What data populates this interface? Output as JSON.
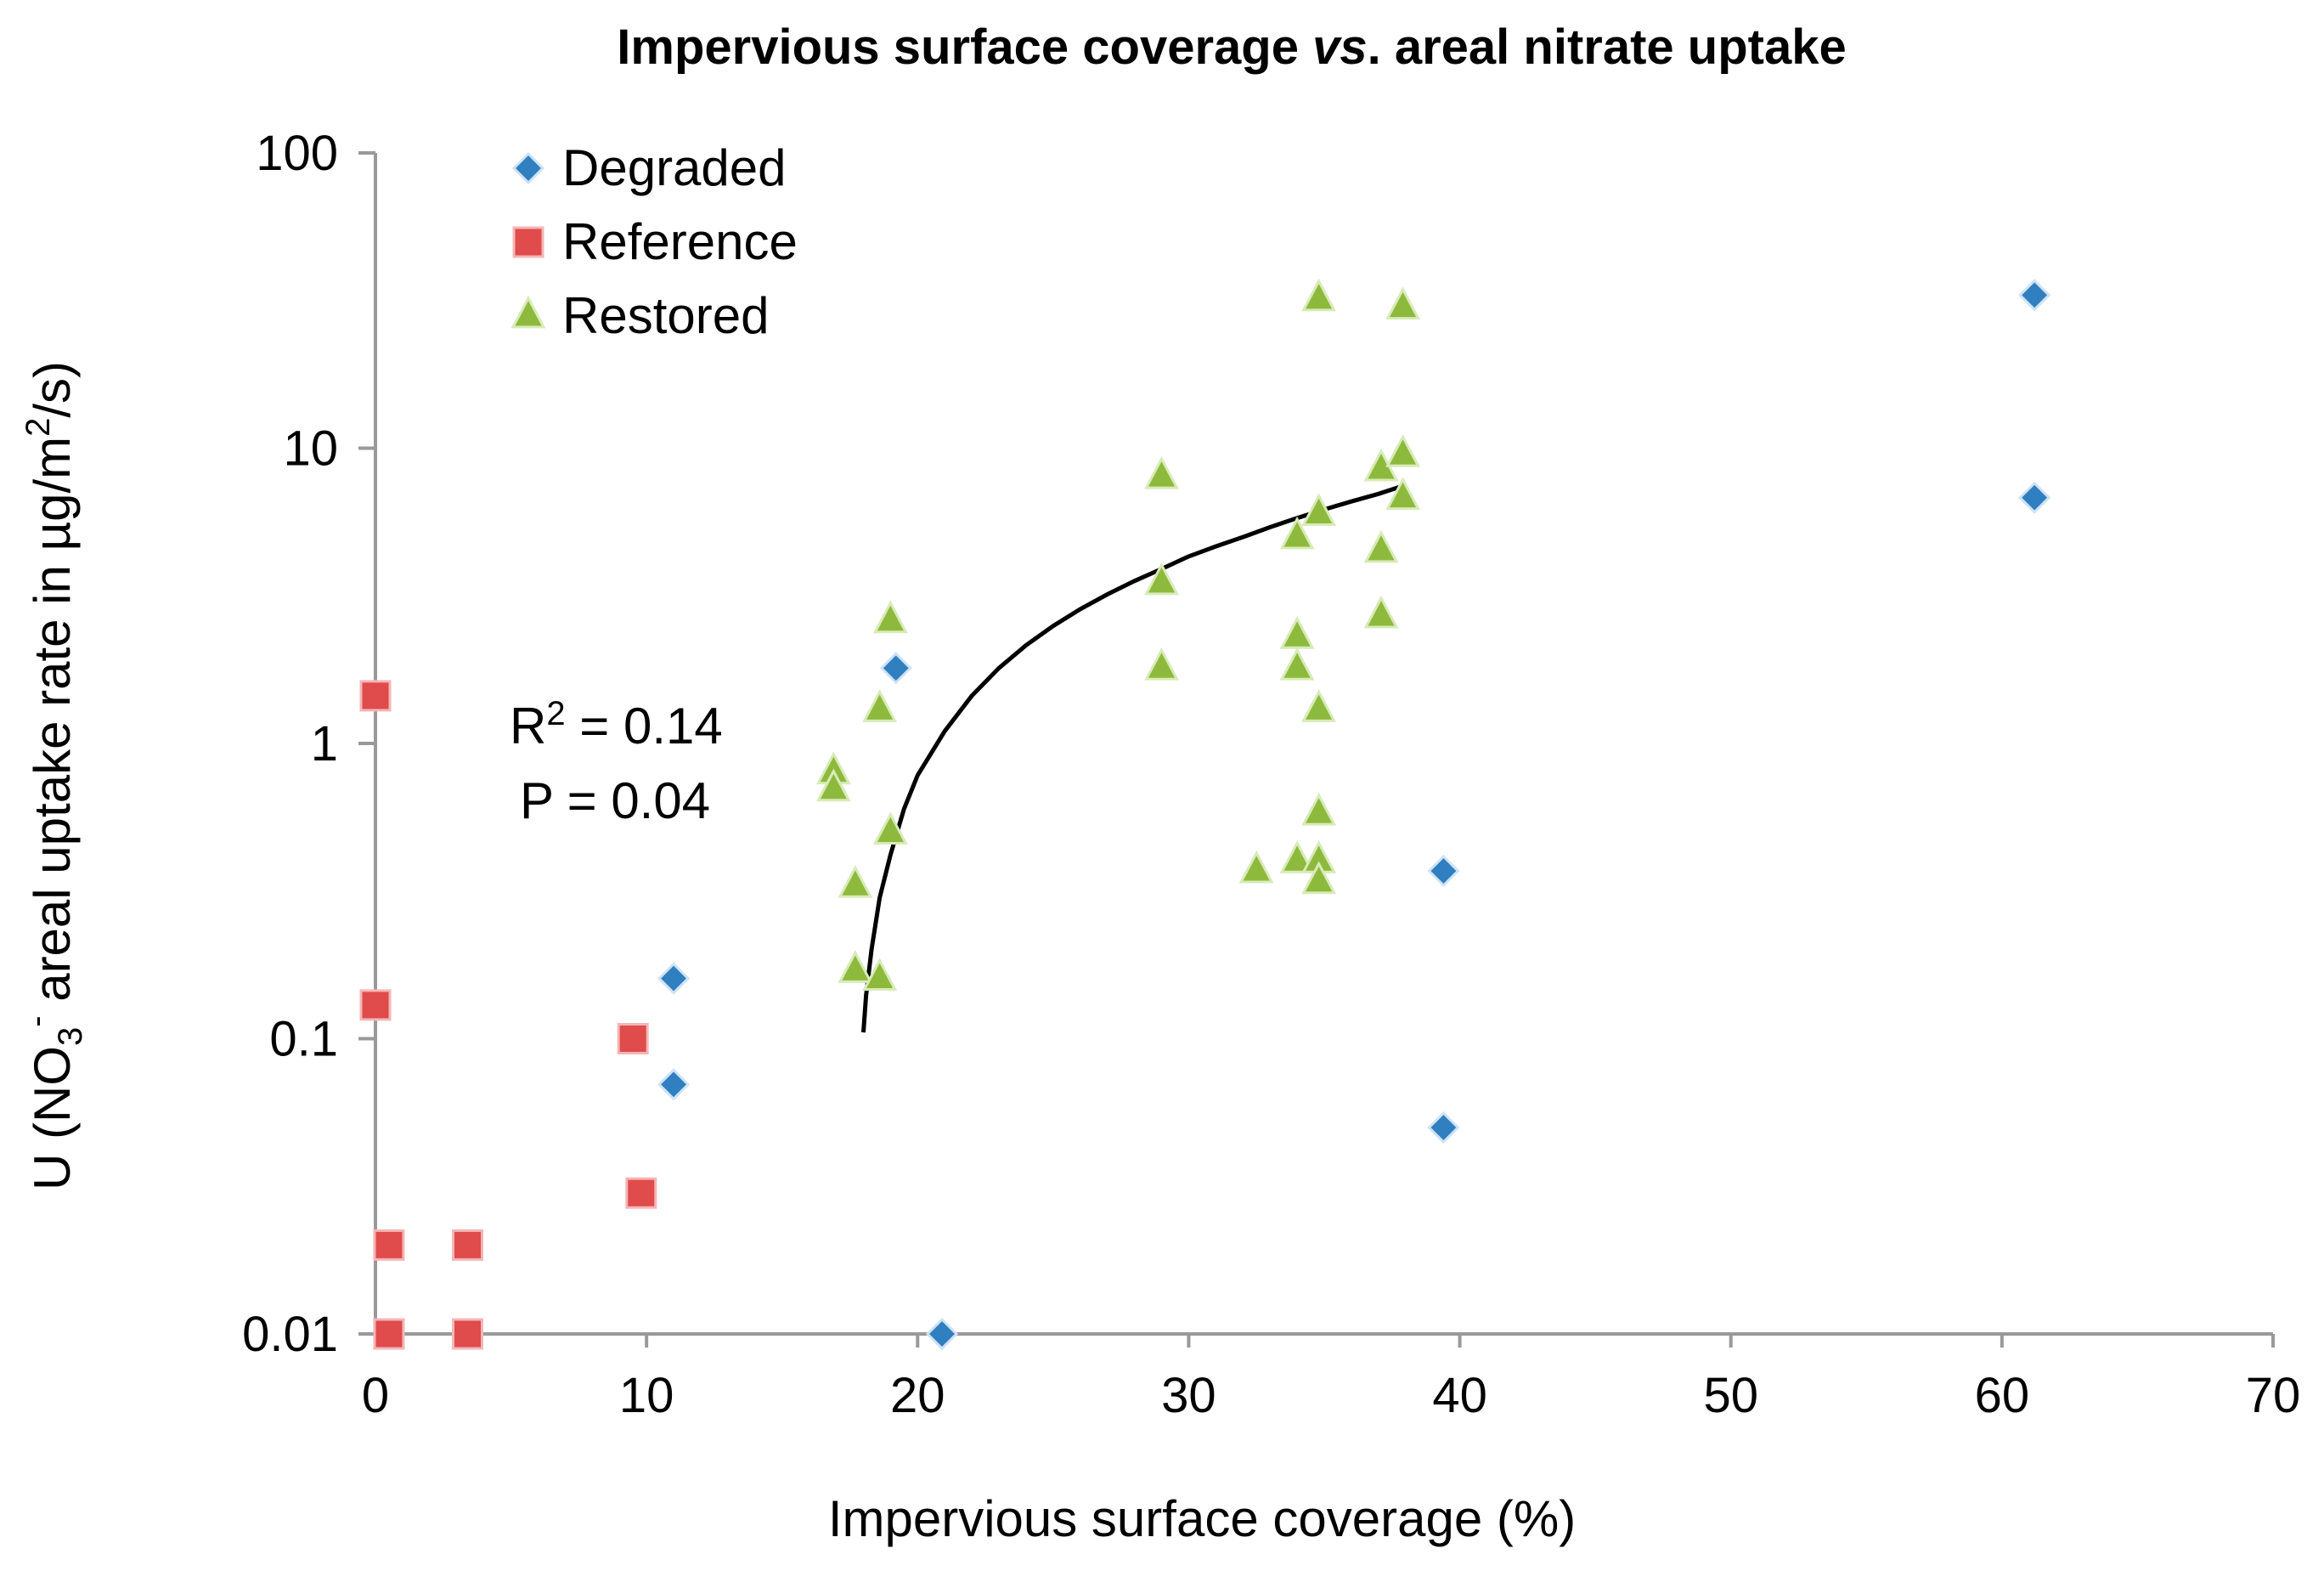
{
  "chart_data": {
    "type": "scatter",
    "title_parts": {
      "a": "Impervious surface coverage ",
      "b": "vs",
      "c": ". areal nitrate uptake"
    },
    "xlabel": "Impervious surface coverage (%)",
    "ylabel_parts": {
      "a": "U (NO",
      "sub": "3",
      "sup": "-",
      "b": " areal uptake rate in µg/m",
      "sup2": "2",
      "c": "/s)"
    },
    "x_ticks": [
      "0",
      "10",
      "20",
      "30",
      "40",
      "50",
      "60",
      "70"
    ],
    "y_ticks": [
      "0.01",
      "0.1",
      "1",
      "10",
      "100"
    ],
    "xlim": [
      0,
      70
    ],
    "ylim": [
      0.01,
      100
    ],
    "y_scale": "log",
    "grid": false,
    "legend_position": "top-left",
    "annotation": {
      "r2_prefix": "R",
      "r2_sup": "2",
      "r2_rest": " = 0.14",
      "p_text": "P = 0.04"
    },
    "series": [
      {
        "name": "Degraded",
        "marker": "diamond",
        "color": "#2F7FC1",
        "points": [
          [
            11,
            0.16
          ],
          [
            11,
            0.07
          ],
          [
            19.2,
            1.8
          ],
          [
            20.9,
            0.01
          ],
          [
            39.4,
            0.37
          ],
          [
            39.4,
            0.05
          ],
          [
            61.2,
            33
          ],
          [
            61.2,
            6.8
          ]
        ]
      },
      {
        "name": "Reference",
        "marker": "square",
        "color": "#E04B4B",
        "points": [
          [
            0,
            1.45
          ],
          [
            0,
            0.13
          ],
          [
            0.5,
            0.02
          ],
          [
            0.5,
            0.01
          ],
          [
            3.4,
            0.02
          ],
          [
            3.4,
            0.01
          ],
          [
            9.5,
            0.1
          ],
          [
            9.8,
            0.03
          ]
        ]
      },
      {
        "name": "Restored",
        "marker": "triangle",
        "color": "#8DBA3C",
        "points": [
          [
            16.9,
            0.8
          ],
          [
            16.9,
            0.7
          ],
          [
            17.7,
            0.33
          ],
          [
            17.7,
            0.17
          ],
          [
            18.6,
            0.16
          ],
          [
            18.6,
            1.3
          ],
          [
            19.0,
            2.6
          ],
          [
            19.0,
            0.5
          ],
          [
            29,
            8
          ],
          [
            29,
            3.5
          ],
          [
            29,
            1.8
          ],
          [
            32.5,
            0.37
          ],
          [
            34,
            5
          ],
          [
            34,
            2.3
          ],
          [
            34,
            1.8
          ],
          [
            34,
            0.4
          ],
          [
            34.8,
            32
          ],
          [
            34.8,
            6
          ],
          [
            34.8,
            1.3
          ],
          [
            34.8,
            0.58
          ],
          [
            34.8,
            0.4
          ],
          [
            34.8,
            0.34
          ],
          [
            37.1,
            8.5
          ],
          [
            37.1,
            4.5
          ],
          [
            37.1,
            2.7
          ],
          [
            37.9,
            30
          ],
          [
            37.9,
            9.5
          ],
          [
            37.9,
            6.8
          ]
        ]
      }
    ],
    "trendline": {
      "type": "log-fit",
      "color": "#000000",
      "points": [
        [
          18.0,
          0.105
        ],
        [
          18.1,
          0.14
        ],
        [
          18.3,
          0.2
        ],
        [
          18.6,
          0.3
        ],
        [
          19.0,
          0.42
        ],
        [
          19.5,
          0.6
        ],
        [
          20.0,
          0.78
        ],
        [
          21.0,
          1.1
        ],
        [
          22.0,
          1.45
        ],
        [
          23.0,
          1.8
        ],
        [
          24.0,
          2.15
        ],
        [
          25.0,
          2.5
        ],
        [
          26.0,
          2.85
        ],
        [
          27.0,
          3.2
        ],
        [
          28.0,
          3.55
        ],
        [
          29.0,
          3.9
        ],
        [
          30.0,
          4.3
        ],
        [
          31.0,
          4.65
        ],
        [
          32.0,
          5.0
        ],
        [
          33.0,
          5.4
        ],
        [
          34.0,
          5.8
        ],
        [
          35.0,
          6.2
        ],
        [
          36.0,
          6.6
        ],
        [
          37.0,
          7.0
        ],
        [
          38.0,
          7.5
        ]
      ]
    }
  }
}
